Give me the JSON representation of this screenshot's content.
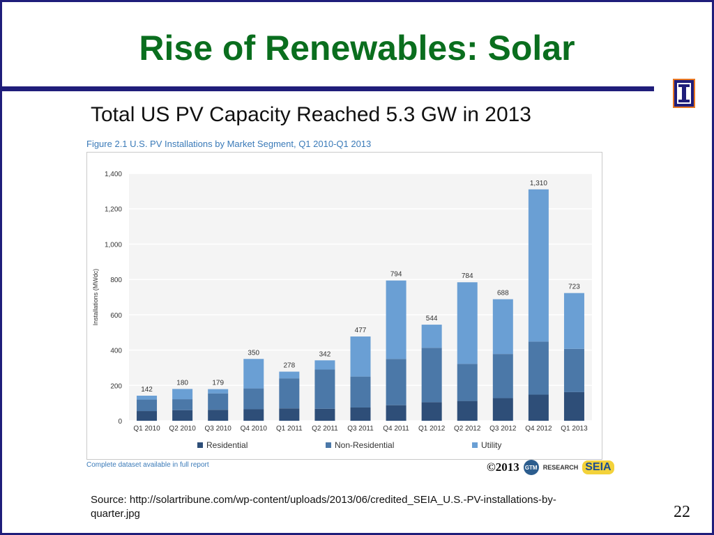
{
  "slide": {
    "title": "Rise of Renewables: Solar",
    "subtitle": "Total US PV Capacity Reached 5.3 GW in 2013",
    "figure_title": "Figure 2.1  U.S. PV Installations by Market Segment, Q1 2010-Q1 2013",
    "dataset_note": "Complete dataset available in full report",
    "credit": "©2013",
    "credit_logo_gtm": "GTM",
    "credit_logo_research": "RESEARCH",
    "credit_logo_seia": "SEIA",
    "source": "Source: http://solartribune.com/wp-content/uploads/2013/06/credited_SEIA_U.S.-PV-installations-by-quarter.jpg",
    "page_number": "22"
  },
  "colors": {
    "title": "#0a6e1e",
    "rule": "#1f1d7a",
    "residential": "#2e4e78",
    "non_residential": "#4b78a8",
    "utility": "#6a9fd4"
  },
  "chart_data": {
    "type": "bar",
    "stacked": true,
    "categories": [
      "Q1 2010",
      "Q2 2010",
      "Q3 2010",
      "Q4 2010",
      "Q1 2011",
      "Q2 2011",
      "Q3 2011",
      "Q4 2011",
      "Q1 2012",
      "Q2 2012",
      "Q3 2012",
      "Q4 2012",
      "Q1 2013"
    ],
    "series": [
      {
        "name": "Residential",
        "values": [
          55,
          60,
          62,
          65,
          70,
          68,
          75,
          88,
          105,
          112,
          128,
          148,
          162
        ]
      },
      {
        "name": "Non-Residential",
        "values": [
          65,
          62,
          93,
          118,
          170,
          222,
          175,
          262,
          308,
          210,
          250,
          300,
          245
        ]
      },
      {
        "name": "Utility",
        "values": [
          22,
          58,
          24,
          167,
          38,
          52,
          227,
          444,
          131,
          462,
          310,
          862,
          316
        ]
      }
    ],
    "totals": [
      142,
      180,
      179,
      350,
      278,
      342,
      477,
      794,
      544,
      784,
      688,
      1310,
      723
    ],
    "total_labels": [
      "142",
      "180",
      "179",
      "350",
      "278",
      "342",
      "477",
      "794",
      "544",
      "784",
      "688",
      "1,310",
      "723"
    ],
    "ylabel": "Installations (MWdc)",
    "xlabel": "",
    "ylim": [
      0,
      1400
    ],
    "yticks": [
      0,
      200,
      400,
      600,
      800,
      1000,
      1200,
      1400
    ],
    "ytick_labels": [
      "0",
      "200",
      "400",
      "600",
      "800",
      "1,000",
      "1,200",
      "1,400"
    ],
    "grid": true,
    "legend_position": "bottom"
  }
}
